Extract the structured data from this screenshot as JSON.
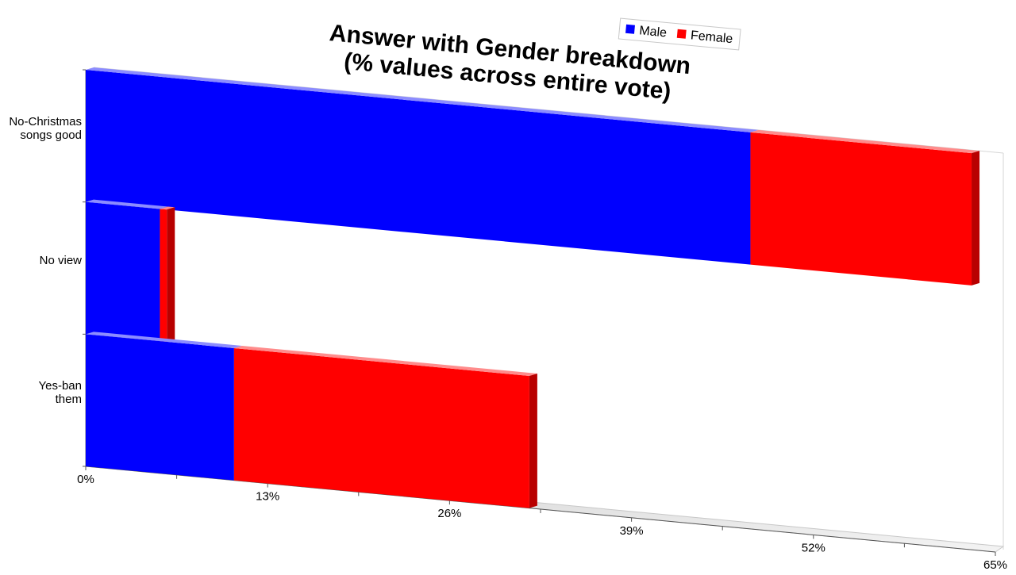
{
  "chart_data": {
    "type": "bar",
    "orientation": "horizontal",
    "stacked": true,
    "title_lines": [
      "Answer with Gender breakdown",
      "(% values across entire vote)"
    ],
    "categories": [
      "No-Christmas songs good",
      "No view",
      "Yes-ban them"
    ],
    "category_label_lines": [
      [
        "No-Christmas",
        "songs good"
      ],
      [
        "No view"
      ],
      [
        "Yes-ban",
        "them"
      ]
    ],
    "series": [
      {
        "name": "Male",
        "color": "#0000ff",
        "values": [
          47.5,
          5.3,
          10.6
        ]
      },
      {
        "name": "Female",
        "color": "#ff0000",
        "values": [
          15.8,
          0.5,
          21.1
        ]
      }
    ],
    "x_ticks": [
      "0%",
      "13%",
      "26%",
      "39%",
      "52%",
      "65%"
    ],
    "xlim": [
      0,
      65
    ],
    "legend_position": "top-right",
    "grid": false
  }
}
